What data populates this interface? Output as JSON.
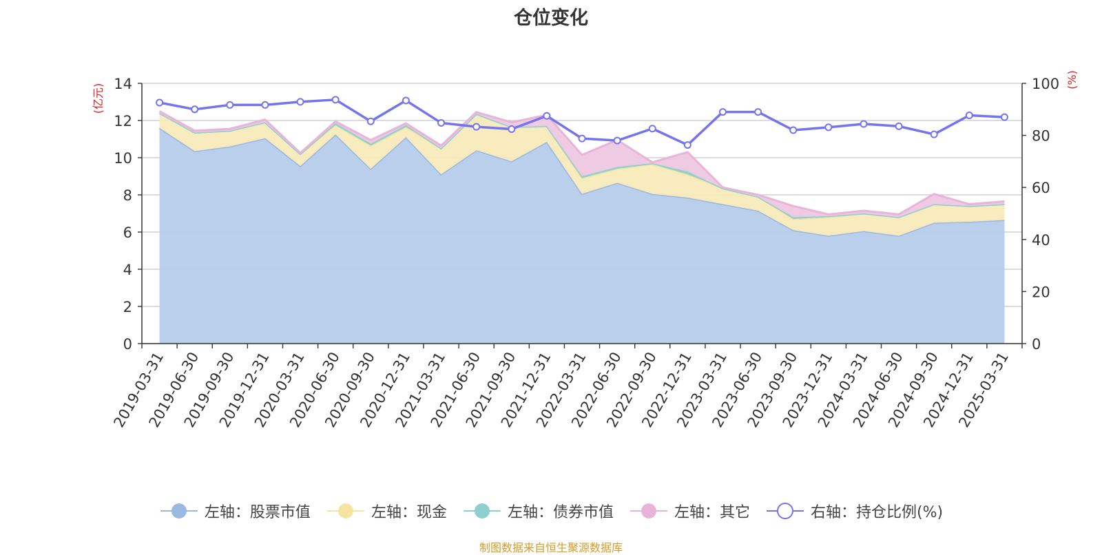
{
  "chart_data": {
    "type": "area",
    "title": "仓位变化",
    "left_axis_label": "(亿元)",
    "right_axis_label": "(%)",
    "left_ylim": [
      0,
      14
    ],
    "left_ticks": [
      0,
      2,
      4,
      6,
      8,
      10,
      12,
      14
    ],
    "right_ylim": [
      0,
      100
    ],
    "right_ticks": [
      0,
      20,
      40,
      60,
      80,
      100
    ],
    "grid": true,
    "legend_position": "bottom",
    "categories": [
      "2019-03-31",
      "2019-06-30",
      "2019-09-30",
      "2019-12-31",
      "2020-03-31",
      "2020-06-30",
      "2020-09-30",
      "2020-12-31",
      "2021-03-31",
      "2021-06-30",
      "2021-09-30",
      "2021-12-31",
      "2022-03-31",
      "2022-06-30",
      "2022-09-30",
      "2022-12-31",
      "2023-03-31",
      "2023-06-30",
      "2023-09-30",
      "2023-12-31",
      "2024-03-31",
      "2024-06-30",
      "2024-09-30",
      "2024-12-31",
      "2025-03-31"
    ],
    "series": [
      {
        "name": "左轴：股票市值",
        "axis": "left",
        "kind": "stacked-area",
        "color": "#9bb8e0",
        "fill": "#b6cceb",
        "values": [
          11.6,
          10.35,
          10.6,
          11.05,
          9.55,
          11.25,
          9.4,
          11.1,
          9.1,
          10.4,
          9.8,
          10.85,
          8.05,
          8.65,
          8.05,
          7.85,
          7.5,
          7.15,
          6.1,
          5.8,
          6.05,
          5.8,
          6.5,
          6.55,
          6.65
        ]
      },
      {
        "name": "左轴：现金",
        "axis": "left",
        "kind": "stacked-area",
        "color": "#f6e5a0",
        "fill": "#f8ebbb",
        "values": [
          0.8,
          1.0,
          0.85,
          0.85,
          0.65,
          0.5,
          1.25,
          0.55,
          1.4,
          1.95,
          1.85,
          0.85,
          0.85,
          0.75,
          1.6,
          1.25,
          0.85,
          0.75,
          0.6,
          1.0,
          0.95,
          1.0,
          1.0,
          0.85,
          0.85
        ]
      },
      {
        "name": "左轴：债券市值",
        "axis": "left",
        "kind": "stacked-area",
        "color": "#8ed0d0",
        "fill": "#8ed0d0",
        "values": [
          0,
          0,
          0,
          0,
          0,
          0.1,
          0.1,
          0.1,
          0,
          0,
          0,
          0,
          0.1,
          0.1,
          0.05,
          0.15,
          0,
          0,
          0.1,
          0.05,
          0,
          0,
          0,
          0,
          0
        ]
      },
      {
        "name": "左轴：其它",
        "axis": "left",
        "kind": "stacked-area",
        "color": "#e8b4d8",
        "fill": "#eec8e2",
        "values": [
          0.1,
          0.1,
          0.1,
          0.15,
          0.05,
          0.1,
          0.2,
          0.1,
          0.15,
          0.1,
          0.25,
          0.6,
          1.15,
          1.45,
          0.05,
          1.05,
          0.05,
          0.1,
          0.6,
          0.1,
          0.15,
          0.15,
          0.55,
          0.1,
          0.15
        ]
      },
      {
        "name": "右轴：持仓比例(%)",
        "axis": "right",
        "kind": "line",
        "color": "#7474ee",
        "values": [
          92.6,
          90.0,
          91.7,
          91.7,
          92.9,
          93.7,
          85.4,
          93.4,
          84.8,
          83.3,
          82.4,
          87.5,
          78.8,
          78.0,
          82.6,
          76.3,
          89.0,
          89.0,
          82.0,
          83.1,
          84.4,
          83.5,
          80.4,
          87.7,
          87.0
        ]
      }
    ],
    "source_note": "制图数据来自恒生聚源数据库"
  }
}
